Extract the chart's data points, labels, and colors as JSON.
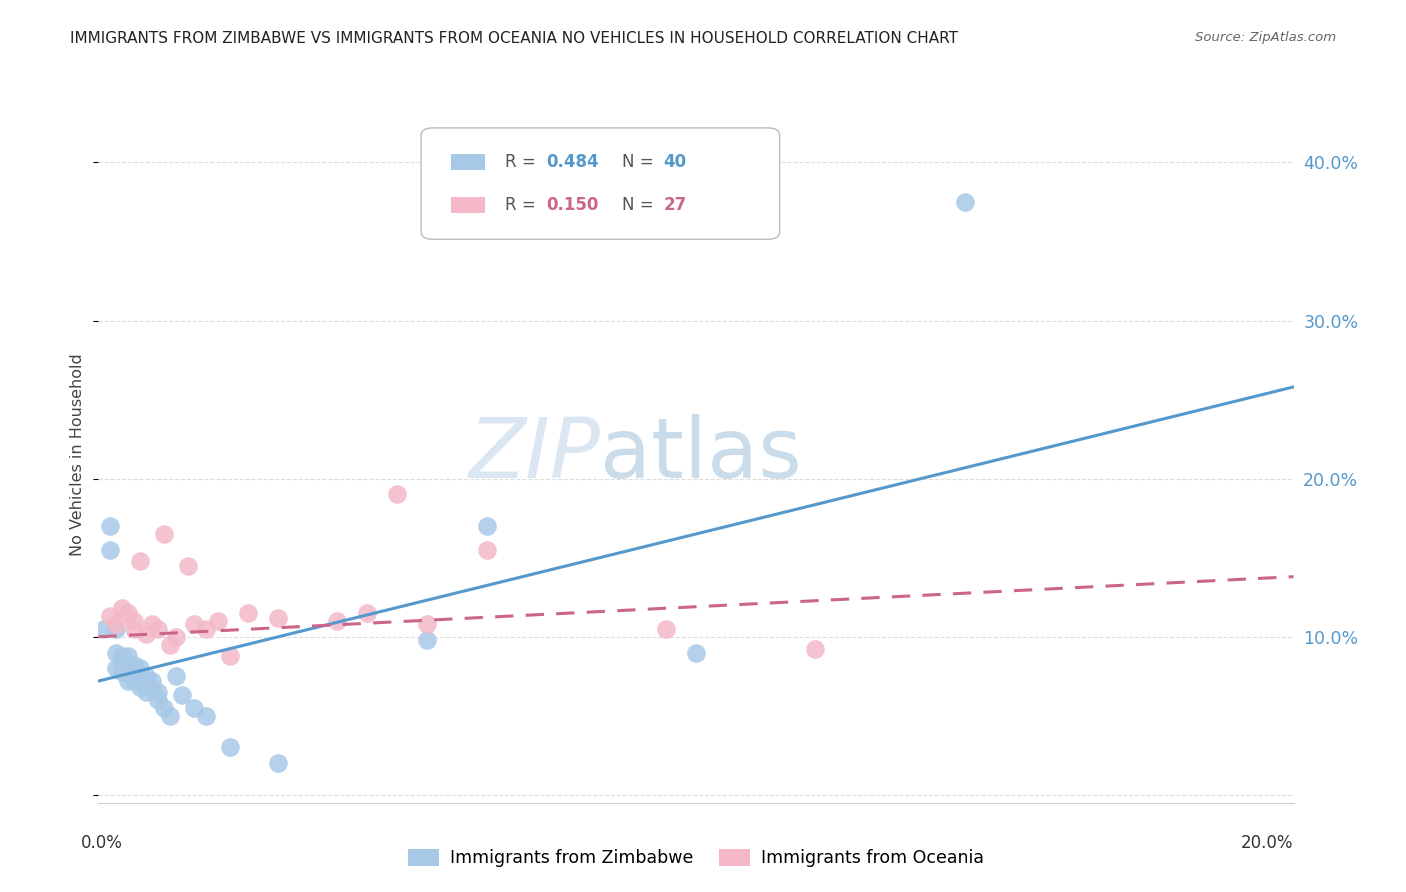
{
  "title": "IMMIGRANTS FROM ZIMBABWE VS IMMIGRANTS FROM OCEANIA NO VEHICLES IN HOUSEHOLD CORRELATION CHART",
  "source": "Source: ZipAtlas.com",
  "ylabel": "No Vehicles in Household",
  "xlim": [
    0.0,
    0.2
  ],
  "ylim": [
    -0.005,
    0.435
  ],
  "blue_color": "#a8c8e8",
  "blue_color_line": "#5599cc",
  "pink_color": "#f4b8c8",
  "pink_color_line": "#cc6688",
  "watermark_zip": "ZIP",
  "watermark_atlas": "atlas",
  "blue_scatter_x": [
    0.001,
    0.002,
    0.002,
    0.003,
    0.003,
    0.003,
    0.004,
    0.004,
    0.004,
    0.005,
    0.005,
    0.005,
    0.005,
    0.006,
    0.006,
    0.006,
    0.007,
    0.007,
    0.007,
    0.008,
    0.008,
    0.008,
    0.009,
    0.009,
    0.01,
    0.01,
    0.011,
    0.012,
    0.013,
    0.014,
    0.016,
    0.018,
    0.022,
    0.03,
    0.055,
    0.065,
    0.1,
    0.145
  ],
  "blue_scatter_y": [
    0.105,
    0.17,
    0.155,
    0.105,
    0.09,
    0.08,
    0.088,
    0.083,
    0.078,
    0.088,
    0.082,
    0.077,
    0.072,
    0.082,
    0.077,
    0.072,
    0.08,
    0.074,
    0.068,
    0.075,
    0.07,
    0.065,
    0.072,
    0.067,
    0.065,
    0.06,
    0.055,
    0.05,
    0.075,
    0.063,
    0.055,
    0.05,
    0.03,
    0.02,
    0.098,
    0.17,
    0.09,
    0.375
  ],
  "pink_scatter_x": [
    0.002,
    0.003,
    0.004,
    0.005,
    0.006,
    0.006,
    0.007,
    0.008,
    0.009,
    0.01,
    0.011,
    0.012,
    0.013,
    0.015,
    0.016,
    0.018,
    0.02,
    0.022,
    0.025,
    0.03,
    0.04,
    0.045,
    0.05,
    0.055,
    0.065,
    0.095,
    0.12
  ],
  "pink_scatter_y": [
    0.113,
    0.108,
    0.118,
    0.115,
    0.11,
    0.105,
    0.148,
    0.102,
    0.108,
    0.105,
    0.165,
    0.095,
    0.1,
    0.145,
    0.108,
    0.105,
    0.11,
    0.088,
    0.115,
    0.112,
    0.11,
    0.115,
    0.19,
    0.108,
    0.155,
    0.105,
    0.092
  ],
  "blue_line_x": [
    0.0,
    0.2
  ],
  "blue_line_y": [
    0.072,
    0.258
  ],
  "pink_line_x": [
    0.0,
    0.2
  ],
  "pink_line_y": [
    0.1,
    0.138
  ],
  "ytick_vals": [
    0.0,
    0.1,
    0.2,
    0.3,
    0.4
  ],
  "ytick_labels": [
    "",
    "10.0%",
    "20.0%",
    "30.0%",
    "40.0%"
  ],
  "grid_color": "#dddddd",
  "background_color": "#ffffff",
  "tick_color": "#5599cc"
}
